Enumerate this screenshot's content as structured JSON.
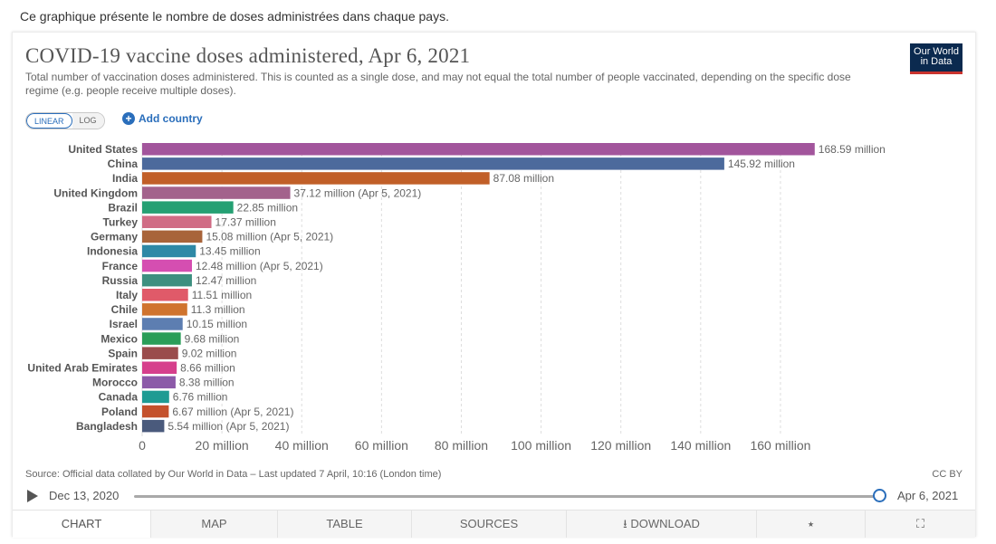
{
  "intro_text": "Ce graphique présente le nombre de doses administrées dans chaque pays.",
  "header": {
    "title": "COVID-19 vaccine doses administered, Apr 6, 2021",
    "subtitle": "Total number of vaccination doses administered. This is counted as a single dose, and may not equal the total number of people vaccinated, depending on the specific dose regime (e.g. people receive multiple doses).",
    "logo_line1": "Our World",
    "logo_line2": "in Data"
  },
  "controls": {
    "linear_label": "LINEAR",
    "log_label": "LOG",
    "active_scale": "linear",
    "add_country_label": "Add country"
  },
  "chart_data": {
    "type": "bar",
    "orientation": "horizontal",
    "title": "COVID-19 vaccine doses administered, Apr 6, 2021",
    "xlim": [
      0,
      170
    ],
    "x_unit": "million",
    "x_ticks": [
      0,
      20,
      40,
      60,
      80,
      100,
      120,
      140,
      160
    ],
    "x_tick_labels": [
      "0",
      "20 million",
      "40 million",
      "60 million",
      "80 million",
      "100 million",
      "120 million",
      "140 million",
      "160 million"
    ],
    "grid": true,
    "categories": [
      "United States",
      "China",
      "India",
      "United Kingdom",
      "Brazil",
      "Turkey",
      "Germany",
      "Indonesia",
      "France",
      "Russia",
      "Italy",
      "Chile",
      "Israel",
      "Mexico",
      "Spain",
      "United Arab Emirates",
      "Morocco",
      "Canada",
      "Poland",
      "Bangladesh"
    ],
    "values": [
      168.59,
      145.92,
      87.08,
      37.12,
      22.85,
      17.37,
      15.08,
      13.45,
      12.48,
      12.47,
      11.51,
      11.3,
      10.15,
      9.68,
      9.02,
      8.66,
      8.38,
      6.76,
      6.67,
      5.54
    ],
    "value_labels": [
      "168.59 million",
      "145.92 million",
      "87.08 million",
      "37.12 million (Apr 5, 2021)",
      "22.85 million",
      "17.37 million",
      "15.08 million (Apr 5, 2021)",
      "13.45 million",
      "12.48 million (Apr 5, 2021)",
      "12.47 million",
      "11.51 million",
      "11.3 million",
      "10.15 million",
      "9.68 million",
      "9.02 million",
      "8.66 million",
      "8.38 million",
      "6.76 million",
      "6.67 million (Apr 5, 2021)",
      "5.54 million (Apr 5, 2021)"
    ],
    "colors": [
      "#a2559c",
      "#4c6a9c",
      "#c15f28",
      "#a3628c",
      "#25a073",
      "#d06c85",
      "#a8643a",
      "#2e89a6",
      "#d54eb1",
      "#3d8f7f",
      "#e05a69",
      "#d0742e",
      "#5d7eb1",
      "#2a9d58",
      "#9a4c4c",
      "#d63f8c",
      "#8c5aa8",
      "#1f9b93",
      "#c4512c",
      "#4a5a7c"
    ]
  },
  "footer": {
    "source": "Source: Official data collated by Our World in Data – Last updated 7 April, 10:16 (London time)",
    "license": "CC BY"
  },
  "timeline": {
    "start_label": "Dec 13, 2020",
    "end_label": "Apr 6, 2021"
  },
  "tabs": [
    {
      "label": "CHART",
      "active": true
    },
    {
      "label": "MAP",
      "active": false
    },
    {
      "label": "TABLE",
      "active": false
    },
    {
      "label": "SOURCES",
      "active": false
    },
    {
      "label": "DOWNLOAD",
      "active": false
    }
  ]
}
